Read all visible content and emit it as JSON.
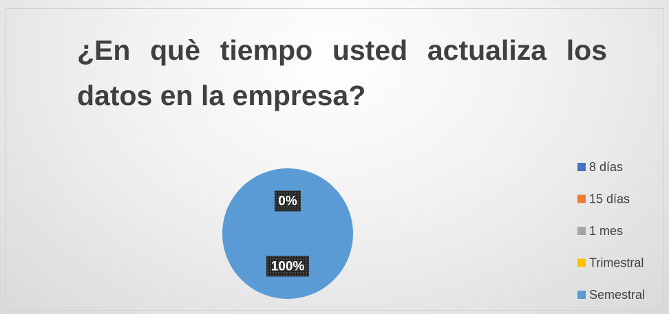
{
  "chart_data": {
    "type": "pie",
    "title": "¿En què tiempo usted actualiza los datos en la empresa?",
    "categories": [
      "8 días",
      "15 días",
      "1 mes",
      "Trimestral",
      "Semestral"
    ],
    "values": [
      0,
      0,
      0,
      0,
      100
    ],
    "value_labels": [
      "0%",
      "0%",
      "0%",
      "0%",
      "100%"
    ],
    "colors": [
      "#4472c4",
      "#ed7d31",
      "#a5a5a5",
      "#ffc000",
      "#5b9bd5"
    ],
    "legend": "right"
  }
}
